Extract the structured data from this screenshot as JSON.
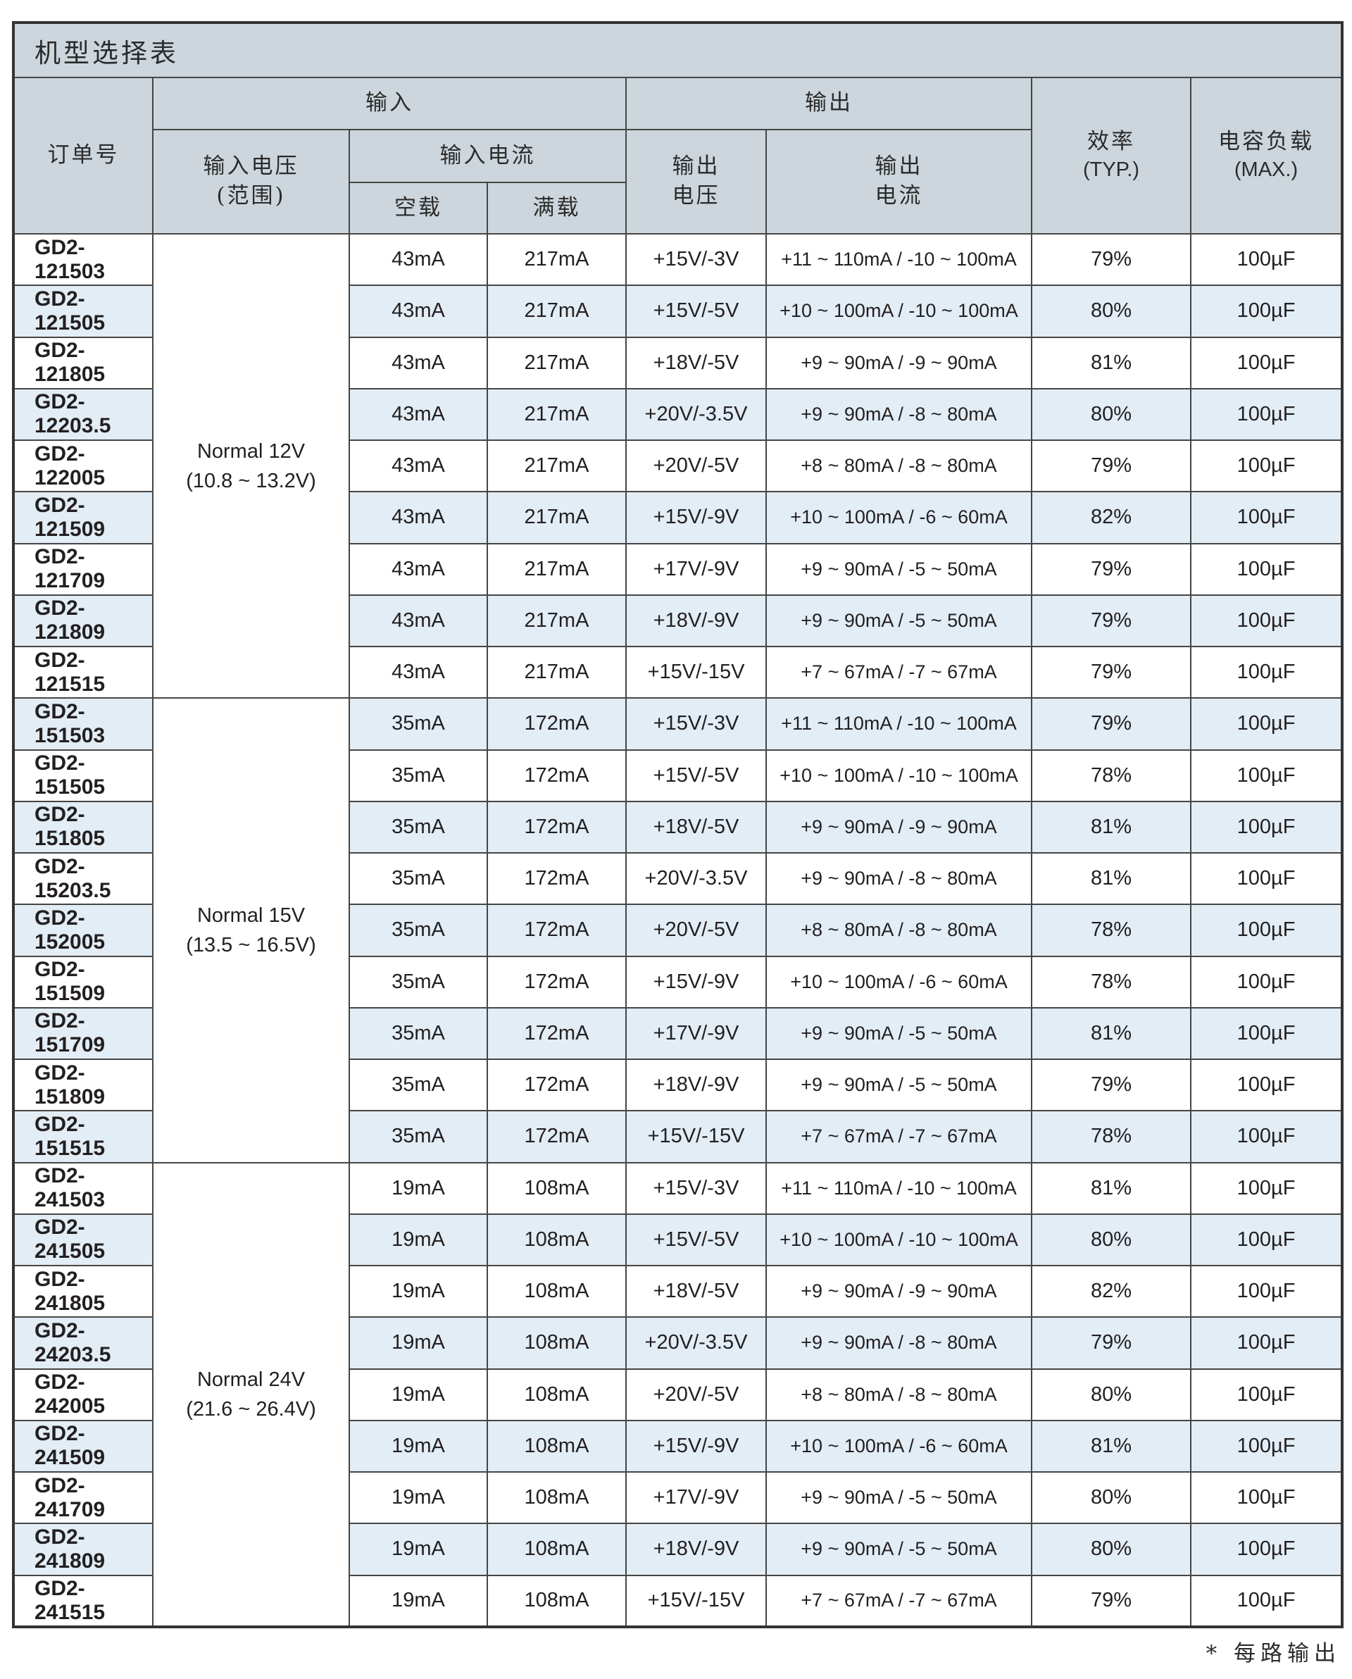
{
  "title": "机型选择表",
  "footnote": "* 每路输出",
  "colors": {
    "header_bg": "#ccd6dc",
    "stripe_bg": "#e2edf5",
    "row_bg": "#ffffff",
    "border": "#454545",
    "text": "#231f20"
  },
  "headers": {
    "order_no": "订单号",
    "input": "输入",
    "output": "输出",
    "input_voltage": "输入电压",
    "input_voltage_range": "(范围)",
    "input_current": "输入电流",
    "no_load": "空载",
    "full_load": "满载",
    "output_voltage_l1": "输出",
    "output_voltage_l2": "电压",
    "output_current_l1": "输出",
    "output_current_l2": "电流",
    "efficiency_l1": "效率",
    "efficiency_l2": "(TYP.)",
    "cap_load_l1": "电容负载",
    "cap_load_l2": "(MAX.)"
  },
  "groups": [
    {
      "input_voltage_label": "Normal 12V",
      "input_voltage_range": "(10.8 ~ 13.2V)",
      "rows": [
        {
          "order": "GD2-121503",
          "no_load": "43mA",
          "full_load": "217mA",
          "vout": "+15V/-3V",
          "iout": "+11 ~ 110mA / -10 ~ 100mA",
          "eff": "79%",
          "cap": "100µF"
        },
        {
          "order": "GD2-121505",
          "no_load": "43mA",
          "full_load": "217mA",
          "vout": "+15V/-5V",
          "iout": "+10 ~ 100mA / -10 ~ 100mA",
          "eff": "80%",
          "cap": "100µF"
        },
        {
          "order": "GD2-121805",
          "no_load": "43mA",
          "full_load": "217mA",
          "vout": "+18V/-5V",
          "iout": "+9 ~ 90mA / -9 ~ 90mA",
          "eff": "81%",
          "cap": "100µF"
        },
        {
          "order": "GD2-12203.5",
          "no_load": "43mA",
          "full_load": "217mA",
          "vout": "+20V/-3.5V",
          "iout": "+9 ~ 90mA / -8 ~ 80mA",
          "eff": "80%",
          "cap": "100µF"
        },
        {
          "order": "GD2-122005",
          "no_load": "43mA",
          "full_load": "217mA",
          "vout": "+20V/-5V",
          "iout": "+8 ~ 80mA / -8 ~ 80mA",
          "eff": "79%",
          "cap": "100µF"
        },
        {
          "order": "GD2-121509",
          "no_load": "43mA",
          "full_load": "217mA",
          "vout": "+15V/-9V",
          "iout": "+10 ~ 100mA / -6 ~ 60mA",
          "eff": "82%",
          "cap": "100µF"
        },
        {
          "order": "GD2-121709",
          "no_load": "43mA",
          "full_load": "217mA",
          "vout": "+17V/-9V",
          "iout": "+9 ~ 90mA / -5 ~ 50mA",
          "eff": "79%",
          "cap": "100µF"
        },
        {
          "order": "GD2-121809",
          "no_load": "43mA",
          "full_load": "217mA",
          "vout": "+18V/-9V",
          "iout": "+9 ~ 90mA / -5 ~ 50mA",
          "eff": "79%",
          "cap": "100µF"
        },
        {
          "order": "GD2-121515",
          "no_load": "43mA",
          "full_load": "217mA",
          "vout": "+15V/-15V",
          "iout": "+7 ~ 67mA / -7 ~ 67mA",
          "eff": "79%",
          "cap": "100µF"
        }
      ]
    },
    {
      "input_voltage_label": "Normal 15V",
      "input_voltage_range": "(13.5 ~ 16.5V)",
      "rows": [
        {
          "order": "GD2-151503",
          "no_load": "35mA",
          "full_load": "172mA",
          "vout": "+15V/-3V",
          "iout": "+11 ~ 110mA / -10 ~ 100mA",
          "eff": "79%",
          "cap": "100µF"
        },
        {
          "order": "GD2-151505",
          "no_load": "35mA",
          "full_load": "172mA",
          "vout": "+15V/-5V",
          "iout": "+10 ~ 100mA / -10 ~ 100mA",
          "eff": "78%",
          "cap": "100µF"
        },
        {
          "order": "GD2-151805",
          "no_load": "35mA",
          "full_load": "172mA",
          "vout": "+18V/-5V",
          "iout": "+9 ~ 90mA / -9 ~ 90mA",
          "eff": "81%",
          "cap": "100µF"
        },
        {
          "order": "GD2-15203.5",
          "no_load": "35mA",
          "full_load": "172mA",
          "vout": "+20V/-3.5V",
          "iout": "+9 ~ 90mA / -8 ~ 80mA",
          "eff": "81%",
          "cap": "100µF"
        },
        {
          "order": "GD2-152005",
          "no_load": "35mA",
          "full_load": "172mA",
          "vout": "+20V/-5V",
          "iout": "+8 ~ 80mA / -8 ~ 80mA",
          "eff": "78%",
          "cap": "100µF"
        },
        {
          "order": "GD2-151509",
          "no_load": "35mA",
          "full_load": "172mA",
          "vout": "+15V/-9V",
          "iout": "+10 ~ 100mA / -6 ~ 60mA",
          "eff": "78%",
          "cap": "100µF"
        },
        {
          "order": "GD2-151709",
          "no_load": "35mA",
          "full_load": "172mA",
          "vout": "+17V/-9V",
          "iout": "+9 ~ 90mA / -5 ~ 50mA",
          "eff": "81%",
          "cap": "100µF"
        },
        {
          "order": "GD2-151809",
          "no_load": "35mA",
          "full_load": "172mA",
          "vout": "+18V/-9V",
          "iout": "+9 ~ 90mA / -5 ~ 50mA",
          "eff": "79%",
          "cap": "100µF"
        },
        {
          "order": "GD2-151515",
          "no_load": "35mA",
          "full_load": "172mA",
          "vout": "+15V/-15V",
          "iout": "+7 ~ 67mA / -7 ~ 67mA",
          "eff": "78%",
          "cap": "100µF"
        }
      ]
    },
    {
      "input_voltage_label": "Normal 24V",
      "input_voltage_range": "(21.6 ~ 26.4V)",
      "rows": [
        {
          "order": "GD2-241503",
          "no_load": "19mA",
          "full_load": "108mA",
          "vout": "+15V/-3V",
          "iout": "+11 ~ 110mA / -10 ~ 100mA",
          "eff": "81%",
          "cap": "100µF"
        },
        {
          "order": "GD2-241505",
          "no_load": "19mA",
          "full_load": "108mA",
          "vout": "+15V/-5V",
          "iout": "+10 ~ 100mA / -10 ~ 100mA",
          "eff": "80%",
          "cap": "100µF"
        },
        {
          "order": "GD2-241805",
          "no_load": "19mA",
          "full_load": "108mA",
          "vout": "+18V/-5V",
          "iout": "+9 ~ 90mA / -9 ~ 90mA",
          "eff": "82%",
          "cap": "100µF"
        },
        {
          "order": "GD2-24203.5",
          "no_load": "19mA",
          "full_load": "108mA",
          "vout": "+20V/-3.5V",
          "iout": "+9 ~ 90mA / -8 ~ 80mA",
          "eff": "79%",
          "cap": "100µF"
        },
        {
          "order": "GD2-242005",
          "no_load": "19mA",
          "full_load": "108mA",
          "vout": "+20V/-5V",
          "iout": "+8 ~ 80mA / -8 ~ 80mA",
          "eff": "80%",
          "cap": "100µF"
        },
        {
          "order": "GD2-241509",
          "no_load": "19mA",
          "full_load": "108mA",
          "vout": "+15V/-9V",
          "iout": "+10 ~ 100mA / -6 ~ 60mA",
          "eff": "81%",
          "cap": "100µF"
        },
        {
          "order": "GD2-241709",
          "no_load": "19mA",
          "full_load": "108mA",
          "vout": "+17V/-9V",
          "iout": "+9 ~ 90mA / -5 ~ 50mA",
          "eff": "80%",
          "cap": "100µF"
        },
        {
          "order": "GD2-241809",
          "no_load": "19mA",
          "full_load": "108mA",
          "vout": "+18V/-9V",
          "iout": "+9 ~ 90mA / -5 ~ 50mA",
          "eff": "80%",
          "cap": "100µF"
        },
        {
          "order": "GD2-241515",
          "no_load": "19mA",
          "full_load": "108mA",
          "vout": "+15V/-15V",
          "iout": "+7 ~ 67mA / -7 ~ 67mA",
          "eff": "79%",
          "cap": "100µF"
        }
      ]
    }
  ]
}
